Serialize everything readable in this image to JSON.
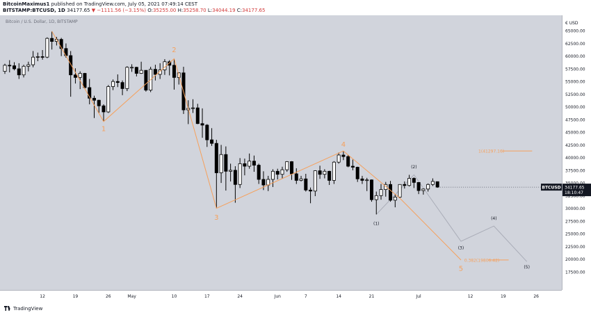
{
  "header": {
    "author": "BitcoinMaximus1",
    "published_text": "published on TradingView.com, July 05, 2021 07:49:14 CEST",
    "symbol": "BITSTAMP:BTCUSD, 1D",
    "last": "34177.65",
    "change": "▼ −1111.56 (−3.15%)",
    "o_label": "O:",
    "o_value": "35255.00",
    "h_label": "H:",
    "h_value": "35258.70",
    "l_label": "L:",
    "l_value": "34044.19",
    "c_label": "C:",
    "c_value": "34177.65"
  },
  "footer": {
    "brand": "TradingView"
  },
  "chart_data": {
    "type": "candlestick",
    "title": "Bitcoin / U.S. Dollar, 1D, BITSTAMP",
    "symbol_tag": "BTCUSD",
    "last_price_label": "34177.65",
    "countdown_label": "18:10:47",
    "y_unit_label": "€ USD",
    "ylim": [
      15000,
      67500
    ],
    "y_ticks": [
      "17500.00",
      "20000.00",
      "22500.00",
      "25000.00",
      "27500.00",
      "30000.00",
      "32500.00",
      "35000.00",
      "37500.00",
      "40000.00",
      "42500.00",
      "45000.00",
      "47500.00",
      "50000.00",
      "52500.00",
      "55000.00",
      "57500.00",
      "60000.00",
      "62500.00",
      "65000.00"
    ],
    "x_start": "2021-04-04",
    "x_end": "2021-07-31",
    "x_ticks": [
      {
        "label": "12",
        "date": "2021-04-12"
      },
      {
        "label": "19",
        "date": "2021-04-19"
      },
      {
        "label": "26",
        "date": "2021-04-26"
      },
      {
        "label": "May",
        "date": "2021-05-01"
      },
      {
        "label": "10",
        "date": "2021-05-10"
      },
      {
        "label": "17",
        "date": "2021-05-17"
      },
      {
        "label": "24",
        "date": "2021-05-24"
      },
      {
        "label": "Jun",
        "date": "2021-06-01"
      },
      {
        "label": "7",
        "date": "2021-06-07"
      },
      {
        "label": "14",
        "date": "2021-06-14"
      },
      {
        "label": "21",
        "date": "2021-06-21"
      },
      {
        "label": "Jul",
        "date": "2021-07-01"
      },
      {
        "label": "12",
        "date": "2021-07-12"
      },
      {
        "label": "19",
        "date": "2021-07-19"
      },
      {
        "label": "26",
        "date": "2021-07-26"
      }
    ],
    "candles": [
      {
        "date": "2021-04-04",
        "o": 57000,
        "h": 58500,
        "l": 56500,
        "c": 58200
      },
      {
        "date": "2021-04-05",
        "o": 58200,
        "h": 59200,
        "l": 56800,
        "c": 58100
      },
      {
        "date": "2021-04-06",
        "o": 58100,
        "h": 58800,
        "l": 57200,
        "c": 57500
      },
      {
        "date": "2021-04-07",
        "o": 57500,
        "h": 58600,
        "l": 55500,
        "c": 56300
      },
      {
        "date": "2021-04-08",
        "o": 56300,
        "h": 58300,
        "l": 55800,
        "c": 58000
      },
      {
        "date": "2021-04-09",
        "o": 58000,
        "h": 58900,
        "l": 57000,
        "c": 58300
      },
      {
        "date": "2021-04-10",
        "o": 58300,
        "h": 61000,
        "l": 57800,
        "c": 59800
      },
      {
        "date": "2021-04-11",
        "o": 59800,
        "h": 60700,
        "l": 59000,
        "c": 59900
      },
      {
        "date": "2021-04-12",
        "o": 59900,
        "h": 61200,
        "l": 59300,
        "c": 59800
      },
      {
        "date": "2021-04-13",
        "o": 59800,
        "h": 63700,
        "l": 59600,
        "c": 63500
      },
      {
        "date": "2021-04-14",
        "o": 63500,
        "h": 64900,
        "l": 61300,
        "c": 62900
      },
      {
        "date": "2021-04-15",
        "o": 62900,
        "h": 63800,
        "l": 62100,
        "c": 63300
      },
      {
        "date": "2021-04-16",
        "o": 63300,
        "h": 63600,
        "l": 60000,
        "c": 61500
      },
      {
        "date": "2021-04-17",
        "o": 61500,
        "h": 62500,
        "l": 59700,
        "c": 60100
      },
      {
        "date": "2021-04-18",
        "o": 60100,
        "h": 61000,
        "l": 52000,
        "c": 56300
      },
      {
        "date": "2021-04-19",
        "o": 56300,
        "h": 57600,
        "l": 54600,
        "c": 55800
      },
      {
        "date": "2021-04-20",
        "o": 55800,
        "h": 57000,
        "l": 53500,
        "c": 56600
      },
      {
        "date": "2021-04-21",
        "o": 56600,
        "h": 56700,
        "l": 53600,
        "c": 53800
      },
      {
        "date": "2021-04-22",
        "o": 53800,
        "h": 55500,
        "l": 50500,
        "c": 51700
      },
      {
        "date": "2021-04-23",
        "o": 51700,
        "h": 52200,
        "l": 47800,
        "c": 51300
      },
      {
        "date": "2021-04-24",
        "o": 51300,
        "h": 51400,
        "l": 48800,
        "c": 50200
      },
      {
        "date": "2021-04-25",
        "o": 50200,
        "h": 50500,
        "l": 47100,
        "c": 49000
      },
      {
        "date": "2021-04-26",
        "o": 49000,
        "h": 54300,
        "l": 48800,
        "c": 54000
      },
      {
        "date": "2021-04-27",
        "o": 54000,
        "h": 55400,
        "l": 53300,
        "c": 55000
      },
      {
        "date": "2021-04-28",
        "o": 55000,
        "h": 56400,
        "l": 53900,
        "c": 54800
      },
      {
        "date": "2021-04-29",
        "o": 54800,
        "h": 55200,
        "l": 52300,
        "c": 53600
      },
      {
        "date": "2021-04-30",
        "o": 53600,
        "h": 58000,
        "l": 53100,
        "c": 57800
      },
      {
        "date": "2021-05-01",
        "o": 57800,
        "h": 58400,
        "l": 56900,
        "c": 57800
      },
      {
        "date": "2021-05-02",
        "o": 57800,
        "h": 57900,
        "l": 56000,
        "c": 56600
      },
      {
        "date": "2021-05-03",
        "o": 56600,
        "h": 58900,
        "l": 56500,
        "c": 57200
      },
      {
        "date": "2021-05-04",
        "o": 57200,
        "h": 57200,
        "l": 53000,
        "c": 53300
      },
      {
        "date": "2021-05-05",
        "o": 53300,
        "h": 57900,
        "l": 52900,
        "c": 57400
      },
      {
        "date": "2021-05-06",
        "o": 57400,
        "h": 58300,
        "l": 55200,
        "c": 56400
      },
      {
        "date": "2021-05-07",
        "o": 56400,
        "h": 58600,
        "l": 55500,
        "c": 57300
      },
      {
        "date": "2021-05-08",
        "o": 57300,
        "h": 59400,
        "l": 56300,
        "c": 58900
      },
      {
        "date": "2021-05-09",
        "o": 58900,
        "h": 59200,
        "l": 56200,
        "c": 58200
      },
      {
        "date": "2021-05-10",
        "o": 58200,
        "h": 59500,
        "l": 53400,
        "c": 55800
      },
      {
        "date": "2021-05-11",
        "o": 55800,
        "h": 56800,
        "l": 54400,
        "c": 56700
      },
      {
        "date": "2021-05-12",
        "o": 56700,
        "h": 57900,
        "l": 48600,
        "c": 49400
      },
      {
        "date": "2021-05-13",
        "o": 49400,
        "h": 51300,
        "l": 46600,
        "c": 49700
      },
      {
        "date": "2021-05-14",
        "o": 49700,
        "h": 51500,
        "l": 48800,
        "c": 49800
      },
      {
        "date": "2021-05-15",
        "o": 49800,
        "h": 50600,
        "l": 46600,
        "c": 46700
      },
      {
        "date": "2021-05-16",
        "o": 46700,
        "h": 49700,
        "l": 43900,
        "c": 46400
      },
      {
        "date": "2021-05-17",
        "o": 46400,
        "h": 46600,
        "l": 42100,
        "c": 43500
      },
      {
        "date": "2021-05-18",
        "o": 43500,
        "h": 45800,
        "l": 42300,
        "c": 42800
      },
      {
        "date": "2021-05-19",
        "o": 42800,
        "h": 43500,
        "l": 30000,
        "c": 37000
      },
      {
        "date": "2021-05-20",
        "o": 37000,
        "h": 42500,
        "l": 35000,
        "c": 40600
      },
      {
        "date": "2021-05-21",
        "o": 40600,
        "h": 42200,
        "l": 33500,
        "c": 37300
      },
      {
        "date": "2021-05-22",
        "o": 37300,
        "h": 38800,
        "l": 35300,
        "c": 37500
      },
      {
        "date": "2021-05-23",
        "o": 37500,
        "h": 38300,
        "l": 31100,
        "c": 34700
      },
      {
        "date": "2021-05-24",
        "o": 34700,
        "h": 39900,
        "l": 34000,
        "c": 38800
      },
      {
        "date": "2021-05-25",
        "o": 38800,
        "h": 39800,
        "l": 36500,
        "c": 38300
      },
      {
        "date": "2021-05-26",
        "o": 38300,
        "h": 40800,
        "l": 37800,
        "c": 39300
      },
      {
        "date": "2021-05-27",
        "o": 39300,
        "h": 40400,
        "l": 37200,
        "c": 38500
      },
      {
        "date": "2021-05-28",
        "o": 38500,
        "h": 38800,
        "l": 34800,
        "c": 35700
      },
      {
        "date": "2021-05-29",
        "o": 35700,
        "h": 37300,
        "l": 33600,
        "c": 34600
      },
      {
        "date": "2021-05-30",
        "o": 34600,
        "h": 36400,
        "l": 33400,
        "c": 35700
      },
      {
        "date": "2021-05-31",
        "o": 35700,
        "h": 37700,
        "l": 34200,
        "c": 37300
      },
      {
        "date": "2021-06-01",
        "o": 37300,
        "h": 37800,
        "l": 35700,
        "c": 36700
      },
      {
        "date": "2021-06-02",
        "o": 36700,
        "h": 38200,
        "l": 35900,
        "c": 37600
      },
      {
        "date": "2021-06-03",
        "o": 37600,
        "h": 39300,
        "l": 37200,
        "c": 39200
      },
      {
        "date": "2021-06-04",
        "o": 39200,
        "h": 39300,
        "l": 35600,
        "c": 36800
      },
      {
        "date": "2021-06-05",
        "o": 36800,
        "h": 37900,
        "l": 34800,
        "c": 35500
      },
      {
        "date": "2021-06-06",
        "o": 35500,
        "h": 36400,
        "l": 35300,
        "c": 35800
      },
      {
        "date": "2021-06-07",
        "o": 35800,
        "h": 36800,
        "l": 33300,
        "c": 33600
      },
      {
        "date": "2021-06-08",
        "o": 33600,
        "h": 34100,
        "l": 31000,
        "c": 33400
      },
      {
        "date": "2021-06-09",
        "o": 33400,
        "h": 37500,
        "l": 32400,
        "c": 37400
      },
      {
        "date": "2021-06-10",
        "o": 37400,
        "h": 38400,
        "l": 35800,
        "c": 36700
      },
      {
        "date": "2021-06-11",
        "o": 36700,
        "h": 37700,
        "l": 35900,
        "c": 37300
      },
      {
        "date": "2021-06-12",
        "o": 37300,
        "h": 37400,
        "l": 34600,
        "c": 35500
      },
      {
        "date": "2021-06-13",
        "o": 35500,
        "h": 39300,
        "l": 34800,
        "c": 39100
      },
      {
        "date": "2021-06-14",
        "o": 39100,
        "h": 41000,
        "l": 38800,
        "c": 40500
      },
      {
        "date": "2021-06-15",
        "o": 40500,
        "h": 41300,
        "l": 39500,
        "c": 40200
      },
      {
        "date": "2021-06-16",
        "o": 40200,
        "h": 40500,
        "l": 38100,
        "c": 38300
      },
      {
        "date": "2021-06-17",
        "o": 38300,
        "h": 39600,
        "l": 37500,
        "c": 38100
      },
      {
        "date": "2021-06-18",
        "o": 38100,
        "h": 38200,
        "l": 35200,
        "c": 35800
      },
      {
        "date": "2021-06-19",
        "o": 35800,
        "h": 36400,
        "l": 34800,
        "c": 35500
      },
      {
        "date": "2021-06-20",
        "o": 35500,
        "h": 36000,
        "l": 33400,
        "c": 35600
      },
      {
        "date": "2021-06-21",
        "o": 35600,
        "h": 35700,
        "l": 31300,
        "c": 31700
      },
      {
        "date": "2021-06-22",
        "o": 31700,
        "h": 33300,
        "l": 28800,
        "c": 32500
      },
      {
        "date": "2021-06-23",
        "o": 32500,
        "h": 34800,
        "l": 31700,
        "c": 33700
      },
      {
        "date": "2021-06-24",
        "o": 33700,
        "h": 35200,
        "l": 32300,
        "c": 34700
      },
      {
        "date": "2021-06-25",
        "o": 34700,
        "h": 35400,
        "l": 31300,
        "c": 31600
      },
      {
        "date": "2021-06-26",
        "o": 31600,
        "h": 32700,
        "l": 30200,
        "c": 32200
      },
      {
        "date": "2021-06-27",
        "o": 32200,
        "h": 34700,
        "l": 32000,
        "c": 34700
      },
      {
        "date": "2021-06-28",
        "o": 34700,
        "h": 35300,
        "l": 33900,
        "c": 34500
      },
      {
        "date": "2021-06-29",
        "o": 34500,
        "h": 36600,
        "l": 34300,
        "c": 35900
      },
      {
        "date": "2021-06-30",
        "o": 35900,
        "h": 36100,
        "l": 34000,
        "c": 35100
      },
      {
        "date": "2021-07-01",
        "o": 35100,
        "h": 35100,
        "l": 32800,
        "c": 33500
      },
      {
        "date": "2021-07-02",
        "o": 33500,
        "h": 33900,
        "l": 32700,
        "c": 33800
      },
      {
        "date": "2021-07-03",
        "o": 33800,
        "h": 34900,
        "l": 33300,
        "c": 34700
      },
      {
        "date": "2021-07-04",
        "o": 34700,
        "h": 35900,
        "l": 34400,
        "c": 35300
      },
      {
        "date": "2021-07-05",
        "o": 35255,
        "h": 35258.7,
        "l": 34044.19,
        "c": 34177.65
      }
    ],
    "wave_lines": [
      {
        "name": "impulse-wave",
        "color": "#f6a05b",
        "points": [
          {
            "date": "2021-04-14",
            "y": 64900
          },
          {
            "date": "2021-04-25",
            "y": 47100
          },
          {
            "date": "2021-05-10",
            "y": 59500
          },
          {
            "date": "2021-05-19",
            "y": 30000
          },
          {
            "date": "2021-06-15",
            "y": 41300
          },
          {
            "date": "2021-06-27",
            "y": 32000
          },
          {
            "date": "2021-07-10",
            "y": 19806.42
          }
        ]
      },
      {
        "name": "projected-subwave",
        "color": "#a9acb7",
        "points": [
          {
            "date": "2021-06-22",
            "y": 28800
          },
          {
            "date": "2021-06-30",
            "y": 36600
          },
          {
            "date": "2021-07-10",
            "y": 23500
          },
          {
            "date": "2021-07-17",
            "y": 26500
          },
          {
            "date": "2021-07-24",
            "y": 19500
          }
        ]
      }
    ],
    "wave_labels": [
      {
        "text": "1",
        "date": "2021-04-25",
        "y": 45800,
        "color": "#f6a05b"
      },
      {
        "text": "2",
        "date": "2021-05-10",
        "y": 61300,
        "color": "#f6a05b"
      },
      {
        "text": "3",
        "date": "2021-05-19",
        "y": 28300,
        "color": "#f6a05b"
      },
      {
        "text": "4",
        "date": "2021-06-15",
        "y": 42700,
        "color": "#f6a05b"
      },
      {
        "text": "5",
        "date": "2021-07-10",
        "y": 18200,
        "color": "#f6a05b"
      },
      {
        "text": "(1)",
        "date": "2021-06-22",
        "y": 27000,
        "color": "#131722"
      },
      {
        "text": "(2)",
        "date": "2021-06-30",
        "y": 38200,
        "color": "#131722"
      },
      {
        "text": "(3)",
        "date": "2021-07-10",
        "y": 22200,
        "color": "#131722"
      },
      {
        "text": "(4)",
        "date": "2021-07-17",
        "y": 28000,
        "color": "#131722"
      },
      {
        "text": "(5)",
        "date": "2021-07-24",
        "y": 18400,
        "color": "#131722"
      }
    ],
    "fib_levels": [
      {
        "label": "1(41297.16)",
        "y": 41297.16,
        "from": "2021-07-14",
        "to": "2021-07-21"
      },
      {
        "label": "0.382(19806.42)",
        "y": 19806.42,
        "from": "2021-07-11",
        "to": "2021-07-16"
      }
    ],
    "colors": {
      "plot_bg": "#d1d4dc",
      "up": "#ffffff",
      "down": "#000000",
      "wave": "#f6a05b",
      "projection": "#a9acb7",
      "axis_text": "#131722"
    }
  }
}
